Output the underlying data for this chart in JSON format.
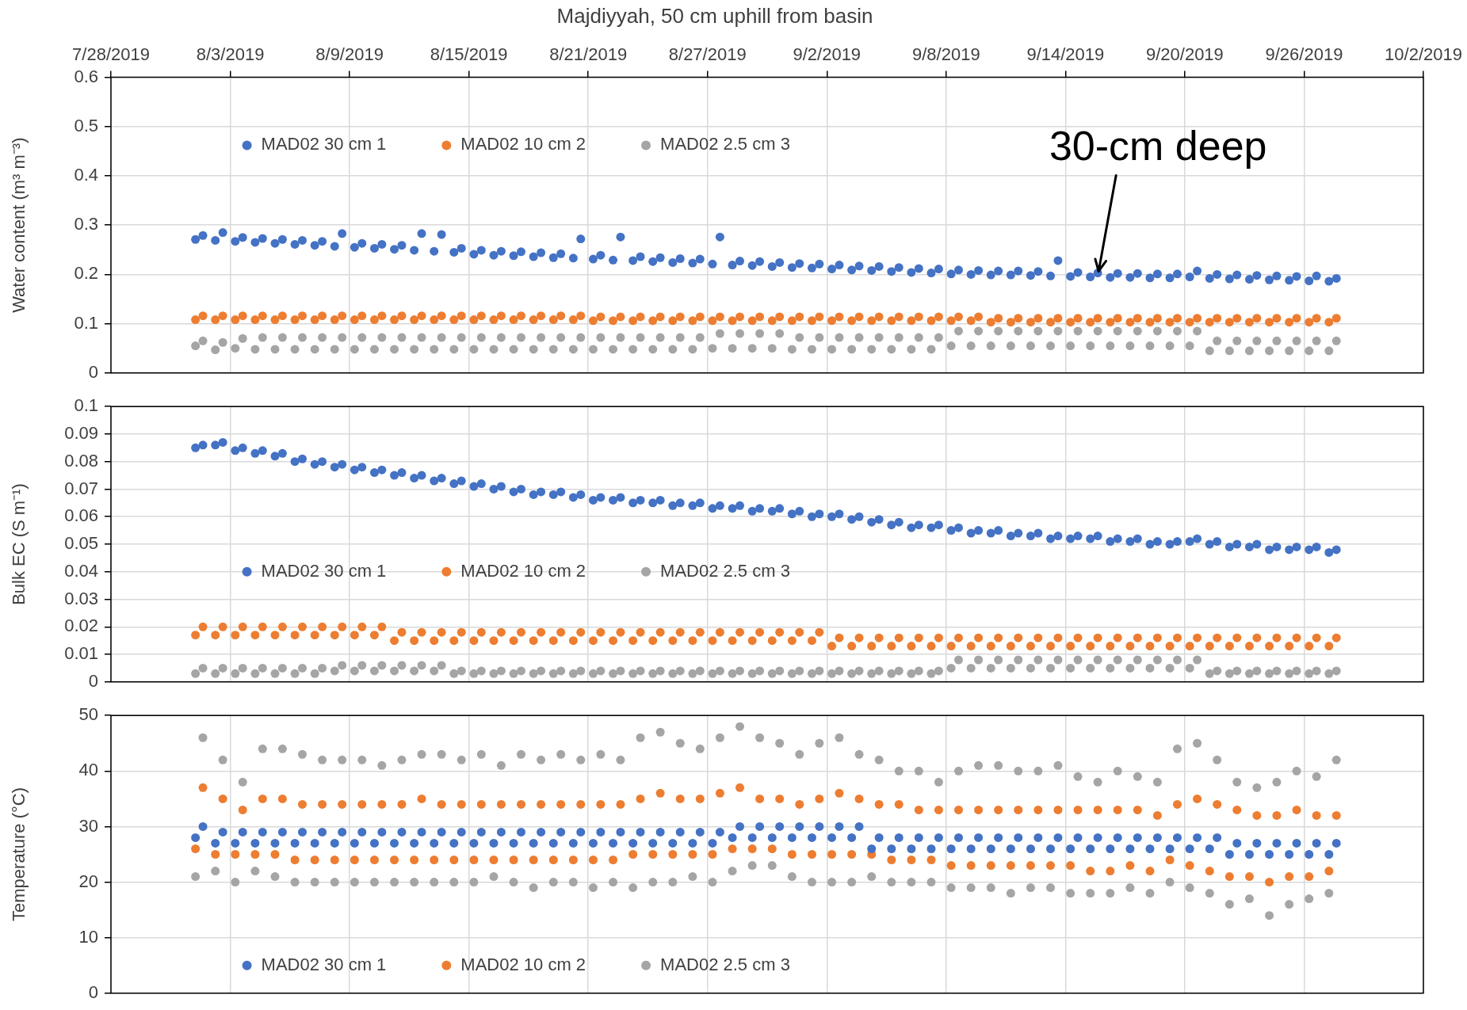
{
  "chart_data": [
    {
      "type": "scatter",
      "title": "Majdiyyah, 50 cm uphill from basin",
      "ylabel": "Water content (m³ m⁻³)",
      "grid": true,
      "legend": "top left",
      "marker": "circle",
      "xlim": [
        "2019-07-28",
        "2019-10-02"
      ],
      "xticks": [
        {
          "value": "2019-07-28",
          "label": "7/28/2019"
        },
        {
          "value": "2019-08-03",
          "label": "8/3/2019"
        },
        {
          "value": "2019-08-09",
          "label": "8/9/2019"
        },
        {
          "value": "2019-08-15",
          "label": "8/15/2019"
        },
        {
          "value": "2019-08-21",
          "label": "8/21/2019"
        },
        {
          "value": "2019-08-27",
          "label": "8/27/2019"
        },
        {
          "value": "2019-09-02",
          "label": "9/2/2019"
        },
        {
          "value": "2019-09-08",
          "label": "9/8/2019"
        },
        {
          "value": "2019-09-14",
          "label": "9/14/2019"
        },
        {
          "value": "2019-09-20",
          "label": "9/20/2019"
        },
        {
          "value": "2019-09-26",
          "label": "9/26/2019"
        },
        {
          "value": "2019-10-02",
          "label": "10/2/2019"
        }
      ],
      "ylim": [
        0,
        0.6
      ],
      "yticks": [
        0,
        0.1,
        0.2,
        0.3,
        0.4,
        0.5,
        0.6
      ],
      "annotations": [
        {
          "text": "30-cm deep",
          "x": "2019-09-15T16:00",
          "y": 0.2
        }
      ],
      "x": [
        "2019-08-01T06:00",
        "2019-08-01T15:00",
        "2019-08-02T06:00",
        "2019-08-02T15:00",
        "2019-08-03T06:00",
        "2019-08-03T15:00",
        "2019-08-04T06:00",
        "2019-08-04T15:00",
        "2019-08-05T06:00",
        "2019-08-05T15:00",
        "2019-08-06T06:00",
        "2019-08-06T15:00",
        "2019-08-07T06:00",
        "2019-08-07T15:00",
        "2019-08-08T06:00",
        "2019-08-08T15:00",
        "2019-08-09T06:00",
        "2019-08-09T15:00",
        "2019-08-10T06:00",
        "2019-08-10T15:00",
        "2019-08-11T06:00",
        "2019-08-11T15:00",
        "2019-08-12T06:00",
        "2019-08-12T15:00",
        "2019-08-13T06:00",
        "2019-08-13T15:00",
        "2019-08-14T06:00",
        "2019-08-14T15:00",
        "2019-08-15T06:00",
        "2019-08-15T15:00",
        "2019-08-16T06:00",
        "2019-08-16T15:00",
        "2019-08-17T06:00",
        "2019-08-17T15:00",
        "2019-08-18T06:00",
        "2019-08-18T15:00",
        "2019-08-19T06:00",
        "2019-08-19T15:00",
        "2019-08-20T06:00",
        "2019-08-20T15:00",
        "2019-08-21T06:00",
        "2019-08-21T15:00",
        "2019-08-22T06:00",
        "2019-08-22T15:00",
        "2019-08-23T06:00",
        "2019-08-23T15:00",
        "2019-08-24T06:00",
        "2019-08-24T15:00",
        "2019-08-25T06:00",
        "2019-08-25T15:00",
        "2019-08-26T06:00",
        "2019-08-26T15:00",
        "2019-08-27T06:00",
        "2019-08-27T15:00",
        "2019-08-28T06:00",
        "2019-08-28T15:00",
        "2019-08-29T06:00",
        "2019-08-29T15:00",
        "2019-08-30T06:00",
        "2019-08-30T15:00",
        "2019-08-31T06:00",
        "2019-08-31T15:00",
        "2019-09-01T06:00",
        "2019-09-01T15:00",
        "2019-09-02T06:00",
        "2019-09-02T15:00",
        "2019-09-03T06:00",
        "2019-09-03T15:00",
        "2019-09-04T06:00",
        "2019-09-04T15:00",
        "2019-09-05T06:00",
        "2019-09-05T15:00",
        "2019-09-06T06:00",
        "2019-09-06T15:00",
        "2019-09-07T06:00",
        "2019-09-07T15:00",
        "2019-09-08T06:00",
        "2019-09-08T15:00",
        "2019-09-09T06:00",
        "2019-09-09T15:00",
        "2019-09-10T06:00",
        "2019-09-10T15:00",
        "2019-09-11T06:00",
        "2019-09-11T15:00",
        "2019-09-12T06:00",
        "2019-09-12T15:00",
        "2019-09-13T06:00",
        "2019-09-13T15:00",
        "2019-09-14T06:00",
        "2019-09-14T15:00",
        "2019-09-15T06:00",
        "2019-09-15T15:00",
        "2019-09-16T06:00",
        "2019-09-16T15:00",
        "2019-09-17T06:00",
        "2019-09-17T15:00",
        "2019-09-18T06:00",
        "2019-09-18T15:00",
        "2019-09-19T06:00",
        "2019-09-19T15:00",
        "2019-09-20T06:00",
        "2019-09-20T15:00",
        "2019-09-21T06:00",
        "2019-09-21T15:00",
        "2019-09-22T06:00",
        "2019-09-22T15:00",
        "2019-09-23T06:00",
        "2019-09-23T15:00",
        "2019-09-24T06:00",
        "2019-09-24T15:00",
        "2019-09-25T06:00",
        "2019-09-25T15:00",
        "2019-09-26T06:00",
        "2019-09-26T15:00",
        "2019-09-27T06:00",
        "2019-09-27T15:00"
      ],
      "series": [
        {
          "name": "MAD02 30 cm 1",
          "color": "#4472c4",
          "values": [
            0.271,
            0.279,
            0.269,
            0.285,
            0.267,
            0.275,
            0.265,
            0.273,
            0.263,
            0.271,
            0.261,
            0.269,
            0.259,
            0.267,
            0.257,
            0.283,
            0.255,
            0.263,
            0.253,
            0.261,
            0.251,
            0.259,
            0.249,
            0.283,
            0.247,
            0.281,
            0.245,
            0.253,
            0.241,
            0.249,
            0.239,
            0.247,
            0.238,
            0.246,
            0.236,
            0.244,
            0.234,
            0.242,
            0.233,
            0.272,
            0.231,
            0.239,
            0.229,
            0.276,
            0.228,
            0.236,
            0.226,
            0.234,
            0.224,
            0.232,
            0.223,
            0.231,
            0.221,
            0.276,
            0.219,
            0.227,
            0.218,
            0.226,
            0.216,
            0.224,
            0.214,
            0.222,
            0.213,
            0.221,
            0.211,
            0.219,
            0.209,
            0.217,
            0.208,
            0.216,
            0.206,
            0.214,
            0.204,
            0.212,
            0.203,
            0.211,
            0.201,
            0.209,
            0.2,
            0.208,
            0.199,
            0.207,
            0.199,
            0.207,
            0.198,
            0.206,
            0.197,
            0.228,
            0.196,
            0.204,
            0.195,
            0.203,
            0.194,
            0.202,
            0.194,
            0.202,
            0.193,
            0.201,
            0.193,
            0.201,
            0.195,
            0.207,
            0.192,
            0.2,
            0.191,
            0.199,
            0.19,
            0.198,
            0.189,
            0.197,
            0.188,
            0.196,
            0.187,
            0.197,
            0.186,
            0.192
          ]
        },
        {
          "name": "MAD02 10 cm 2",
          "color": "#ed7d31",
          "values": [
            0.108,
            0.116,
            0.108,
            0.116,
            0.108,
            0.116,
            0.108,
            0.116,
            0.108,
            0.116,
            0.108,
            0.116,
            0.108,
            0.116,
            0.108,
            0.116,
            0.108,
            0.116,
            0.108,
            0.116,
            0.108,
            0.116,
            0.108,
            0.116,
            0.108,
            0.116,
            0.108,
            0.116,
            0.108,
            0.116,
            0.108,
            0.116,
            0.108,
            0.116,
            0.108,
            0.116,
            0.108,
            0.116,
            0.108,
            0.116,
            0.106,
            0.114,
            0.106,
            0.114,
            0.106,
            0.114,
            0.106,
            0.114,
            0.106,
            0.114,
            0.106,
            0.114,
            0.106,
            0.114,
            0.106,
            0.114,
            0.106,
            0.114,
            0.106,
            0.114,
            0.106,
            0.114,
            0.106,
            0.114,
            0.106,
            0.114,
            0.106,
            0.114,
            0.106,
            0.114,
            0.106,
            0.114,
            0.106,
            0.114,
            0.106,
            0.114,
            0.106,
            0.114,
            0.106,
            0.114,
            0.103,
            0.111,
            0.103,
            0.111,
            0.103,
            0.111,
            0.103,
            0.111,
            0.103,
            0.111,
            0.103,
            0.111,
            0.103,
            0.111,
            0.103,
            0.111,
            0.103,
            0.111,
            0.103,
            0.111,
            0.103,
            0.111,
            0.103,
            0.111,
            0.103,
            0.111,
            0.103,
            0.111,
            0.103,
            0.111,
            0.103,
            0.111,
            0.103,
            0.111,
            0.103,
            0.111
          ]
        },
        {
          "name": "MAD02 2.5 cm 3",
          "color": "#a5a5a5",
          "values": [
            0.055,
            0.065,
            0.047,
            0.062,
            0.05,
            0.07,
            0.048,
            0.072,
            0.048,
            0.072,
            0.048,
            0.072,
            0.048,
            0.072,
            0.048,
            0.072,
            0.048,
            0.072,
            0.048,
            0.072,
            0.048,
            0.072,
            0.048,
            0.072,
            0.048,
            0.072,
            0.048,
            0.072,
            0.048,
            0.072,
            0.048,
            0.072,
            0.048,
            0.072,
            0.048,
            0.072,
            0.048,
            0.072,
            0.048,
            0.072,
            0.048,
            0.072,
            0.048,
            0.072,
            0.048,
            0.072,
            0.048,
            0.072,
            0.048,
            0.072,
            0.048,
            0.072,
            0.05,
            0.08,
            0.05,
            0.08,
            0.05,
            0.08,
            0.05,
            0.08,
            0.048,
            0.072,
            0.048,
            0.072,
            0.048,
            0.072,
            0.048,
            0.072,
            0.048,
            0.072,
            0.048,
            0.072,
            0.048,
            0.072,
            0.048,
            0.072,
            0.055,
            0.085,
            0.055,
            0.085,
            0.055,
            0.085,
            0.055,
            0.085,
            0.055,
            0.085,
            0.055,
            0.085,
            0.055,
            0.085,
            0.055,
            0.085,
            0.055,
            0.085,
            0.055,
            0.085,
            0.055,
            0.085,
            0.055,
            0.085,
            0.055,
            0.085,
            0.045,
            0.065,
            0.045,
            0.065,
            0.045,
            0.065,
            0.045,
            0.065,
            0.045,
            0.065,
            0.045,
            0.065,
            0.045,
            0.065
          ]
        }
      ]
    },
    {
      "type": "scatter",
      "ylabel": "Bulk EC (S m⁻¹)",
      "grid": true,
      "legend": "left",
      "marker": "circle",
      "tick_labels": "y",
      "xlim": [
        "2019-07-28",
        "2019-10-02"
      ],
      "xticks": [
        {
          "value": "2019-07-28",
          "label": null
        },
        {
          "value": "2019-08-03",
          "label": null
        },
        {
          "value": "2019-08-09",
          "label": null
        },
        {
          "value": "2019-08-15",
          "label": null
        },
        {
          "value": "2019-08-21",
          "label": null
        },
        {
          "value": "2019-08-27",
          "label": null
        },
        {
          "value": "2019-09-02",
          "label": null
        },
        {
          "value": "2019-09-08",
          "label": null
        },
        {
          "value": "2019-09-14",
          "label": null
        },
        {
          "value": "2019-09-20",
          "label": null
        },
        {
          "value": "2019-09-26",
          "label": null
        },
        {
          "value": "2019-10-02",
          "label": null
        }
      ],
      "ylim": [
        0,
        0.1
      ],
      "yticks": [
        0,
        0.01,
        0.02,
        0.03,
        0.04,
        0.05,
        0.06,
        0.07,
        0.08,
        0.09,
        0.1
      ],
      "x": [
        "2019-08-01T06:00",
        "2019-08-01T15:00",
        "2019-08-02T06:00",
        "2019-08-02T15:00",
        "2019-08-03T06:00",
        "2019-08-03T15:00",
        "2019-08-04T06:00",
        "2019-08-04T15:00",
        "2019-08-05T06:00",
        "2019-08-05T15:00",
        "2019-08-06T06:00",
        "2019-08-06T15:00",
        "2019-08-07T06:00",
        "2019-08-07T15:00",
        "2019-08-08T06:00",
        "2019-08-08T15:00",
        "2019-08-09T06:00",
        "2019-08-09T15:00",
        "2019-08-10T06:00",
        "2019-08-10T15:00",
        "2019-08-11T06:00",
        "2019-08-11T15:00",
        "2019-08-12T06:00",
        "2019-08-12T15:00",
        "2019-08-13T06:00",
        "2019-08-13T15:00",
        "2019-08-14T06:00",
        "2019-08-14T15:00",
        "2019-08-15T06:00",
        "2019-08-15T15:00",
        "2019-08-16T06:00",
        "2019-08-16T15:00",
        "2019-08-17T06:00",
        "2019-08-17T15:00",
        "2019-08-18T06:00",
        "2019-08-18T15:00",
        "2019-08-19T06:00",
        "2019-08-19T15:00",
        "2019-08-20T06:00",
        "2019-08-20T15:00",
        "2019-08-21T06:00",
        "2019-08-21T15:00",
        "2019-08-22T06:00",
        "2019-08-22T15:00",
        "2019-08-23T06:00",
        "2019-08-23T15:00",
        "2019-08-24T06:00",
        "2019-08-24T15:00",
        "2019-08-25T06:00",
        "2019-08-25T15:00",
        "2019-08-26T06:00",
        "2019-08-26T15:00",
        "2019-08-27T06:00",
        "2019-08-27T15:00",
        "2019-08-28T06:00",
        "2019-08-28T15:00",
        "2019-08-29T06:00",
        "2019-08-29T15:00",
        "2019-08-30T06:00",
        "2019-08-30T15:00",
        "2019-08-31T06:00",
        "2019-08-31T15:00",
        "2019-09-01T06:00",
        "2019-09-01T15:00",
        "2019-09-02T06:00",
        "2019-09-02T15:00",
        "2019-09-03T06:00",
        "2019-09-03T15:00",
        "2019-09-04T06:00",
        "2019-09-04T15:00",
        "2019-09-05T06:00",
        "2019-09-05T15:00",
        "2019-09-06T06:00",
        "2019-09-06T15:00",
        "2019-09-07T06:00",
        "2019-09-07T15:00",
        "2019-09-08T06:00",
        "2019-09-08T15:00",
        "2019-09-09T06:00",
        "2019-09-09T15:00",
        "2019-09-10T06:00",
        "2019-09-10T15:00",
        "2019-09-11T06:00",
        "2019-09-11T15:00",
        "2019-09-12T06:00",
        "2019-09-12T15:00",
        "2019-09-13T06:00",
        "2019-09-13T15:00",
        "2019-09-14T06:00",
        "2019-09-14T15:00",
        "2019-09-15T06:00",
        "2019-09-15T15:00",
        "2019-09-16T06:00",
        "2019-09-16T15:00",
        "2019-09-17T06:00",
        "2019-09-17T15:00",
        "2019-09-18T06:00",
        "2019-09-18T15:00",
        "2019-09-19T06:00",
        "2019-09-19T15:00",
        "2019-09-20T06:00",
        "2019-09-20T15:00",
        "2019-09-21T06:00",
        "2019-09-21T15:00",
        "2019-09-22T06:00",
        "2019-09-22T15:00",
        "2019-09-23T06:00",
        "2019-09-23T15:00",
        "2019-09-24T06:00",
        "2019-09-24T15:00",
        "2019-09-25T06:00",
        "2019-09-25T15:00",
        "2019-09-26T06:00",
        "2019-09-26T15:00",
        "2019-09-27T06:00",
        "2019-09-27T15:00"
      ],
      "series": [
        {
          "name": "MAD02 30 cm 1",
          "color": "#4472c4",
          "values": [
            0.085,
            0.086,
            0.086,
            0.087,
            0.084,
            0.085,
            0.083,
            0.084,
            0.082,
            0.083,
            0.08,
            0.081,
            0.079,
            0.08,
            0.078,
            0.079,
            0.077,
            0.078,
            0.076,
            0.077,
            0.075,
            0.076,
            0.074,
            0.075,
            0.073,
            0.074,
            0.072,
            0.073,
            0.071,
            0.072,
            0.07,
            0.071,
            0.069,
            0.07,
            0.068,
            0.069,
            0.068,
            0.069,
            0.067,
            0.068,
            0.066,
            0.067,
            0.066,
            0.067,
            0.065,
            0.066,
            0.065,
            0.066,
            0.064,
            0.065,
            0.064,
            0.065,
            0.063,
            0.064,
            0.063,
            0.064,
            0.062,
            0.063,
            0.062,
            0.063,
            0.061,
            0.062,
            0.06,
            0.061,
            0.06,
            0.061,
            0.059,
            0.06,
            0.058,
            0.059,
            0.057,
            0.058,
            0.056,
            0.057,
            0.056,
            0.057,
            0.055,
            0.056,
            0.054,
            0.055,
            0.054,
            0.055,
            0.053,
            0.054,
            0.053,
            0.054,
            0.052,
            0.053,
            0.052,
            0.053,
            0.052,
            0.053,
            0.051,
            0.052,
            0.051,
            0.052,
            0.05,
            0.051,
            0.05,
            0.051,
            0.051,
            0.052,
            0.05,
            0.051,
            0.049,
            0.05,
            0.049,
            0.05,
            0.048,
            0.049,
            0.048,
            0.049,
            0.048,
            0.049,
            0.047,
            0.048
          ]
        },
        {
          "name": "MAD02 10 cm 2",
          "color": "#ed7d31",
          "values": [
            0.017,
            0.02,
            0.017,
            0.02,
            0.017,
            0.02,
            0.017,
            0.02,
            0.017,
            0.02,
            0.017,
            0.02,
            0.017,
            0.02,
            0.017,
            0.02,
            0.017,
            0.02,
            0.017,
            0.02,
            0.015,
            0.018,
            0.015,
            0.018,
            0.015,
            0.018,
            0.015,
            0.018,
            0.015,
            0.018,
            0.015,
            0.018,
            0.015,
            0.018,
            0.015,
            0.018,
            0.015,
            0.018,
            0.015,
            0.018,
            0.015,
            0.018,
            0.015,
            0.018,
            0.015,
            0.018,
            0.015,
            0.018,
            0.015,
            0.018,
            0.015,
            0.018,
            0.015,
            0.018,
            0.015,
            0.018,
            0.015,
            0.018,
            0.015,
            0.018,
            0.015,
            0.018,
            0.015,
            0.018,
            0.013,
            0.016,
            0.013,
            0.016,
            0.013,
            0.016,
            0.013,
            0.016,
            0.013,
            0.016,
            0.013,
            0.016,
            0.013,
            0.016,
            0.013,
            0.016,
            0.013,
            0.016,
            0.013,
            0.016,
            0.013,
            0.016,
            0.013,
            0.016,
            0.013,
            0.016,
            0.013,
            0.016,
            0.013,
            0.016,
            0.013,
            0.016,
            0.013,
            0.016,
            0.013,
            0.016,
            0.013,
            0.016,
            0.013,
            0.016,
            0.013,
            0.016,
            0.013,
            0.016,
            0.013,
            0.016,
            0.013,
            0.016,
            0.013,
            0.016,
            0.013,
            0.016
          ]
        },
        {
          "name": "MAD02 2.5 cm 3",
          "color": "#a5a5a5",
          "values": [
            0.003,
            0.005,
            0.003,
            0.005,
            0.003,
            0.005,
            0.003,
            0.005,
            0.003,
            0.005,
            0.003,
            0.005,
            0.003,
            0.005,
            0.004,
            0.006,
            0.004,
            0.006,
            0.004,
            0.006,
            0.004,
            0.006,
            0.004,
            0.006,
            0.004,
            0.006,
            0.003,
            0.004,
            0.003,
            0.004,
            0.003,
            0.004,
            0.003,
            0.004,
            0.003,
            0.004,
            0.003,
            0.004,
            0.003,
            0.004,
            0.003,
            0.004,
            0.003,
            0.004,
            0.003,
            0.004,
            0.003,
            0.004,
            0.003,
            0.004,
            0.003,
            0.004,
            0.003,
            0.004,
            0.003,
            0.004,
            0.003,
            0.004,
            0.003,
            0.004,
            0.003,
            0.004,
            0.003,
            0.004,
            0.003,
            0.004,
            0.003,
            0.004,
            0.003,
            0.004,
            0.003,
            0.004,
            0.003,
            0.004,
            0.003,
            0.004,
            0.005,
            0.008,
            0.005,
            0.008,
            0.005,
            0.008,
            0.005,
            0.008,
            0.005,
            0.008,
            0.005,
            0.008,
            0.005,
            0.008,
            0.005,
            0.008,
            0.005,
            0.008,
            0.005,
            0.008,
            0.005,
            0.008,
            0.005,
            0.008,
            0.005,
            0.008,
            0.003,
            0.004,
            0.003,
            0.004,
            0.003,
            0.004,
            0.003,
            0.004,
            0.003,
            0.004,
            0.003,
            0.004,
            0.003,
            0.004
          ]
        }
      ]
    },
    {
      "type": "scatter",
      "ylabel": "Temperature (°C)",
      "grid": true,
      "legend": "bottom left",
      "marker": "circle",
      "tick_labels": "y",
      "xlim": [
        "2019-07-28",
        "2019-10-02"
      ],
      "xticks": [
        {
          "value": "2019-07-28",
          "label": null
        },
        {
          "value": "2019-08-03",
          "label": null
        },
        {
          "value": "2019-08-09",
          "label": null
        },
        {
          "value": "2019-08-15",
          "label": null
        },
        {
          "value": "2019-08-21",
          "label": null
        },
        {
          "value": "2019-08-27",
          "label": null
        },
        {
          "value": "2019-09-02",
          "label": null
        },
        {
          "value": "2019-09-08",
          "label": null
        },
        {
          "value": "2019-09-14",
          "label": null
        },
        {
          "value": "2019-09-20",
          "label": null
        },
        {
          "value": "2019-09-26",
          "label": null
        },
        {
          "value": "2019-10-02",
          "label": null
        }
      ],
      "ylim": [
        0,
        50
      ],
      "yticks": [
        0,
        10,
        20,
        30,
        40,
        50
      ],
      "x": [
        "2019-08-01T06:00",
        "2019-08-01T15:00",
        "2019-08-02T06:00",
        "2019-08-02T15:00",
        "2019-08-03T06:00",
        "2019-08-03T15:00",
        "2019-08-04T06:00",
        "2019-08-04T15:00",
        "2019-08-05T06:00",
        "2019-08-05T15:00",
        "2019-08-06T06:00",
        "2019-08-06T15:00",
        "2019-08-07T06:00",
        "2019-08-07T15:00",
        "2019-08-08T06:00",
        "2019-08-08T15:00",
        "2019-08-09T06:00",
        "2019-08-09T15:00",
        "2019-08-10T06:00",
        "2019-08-10T15:00",
        "2019-08-11T06:00",
        "2019-08-11T15:00",
        "2019-08-12T06:00",
        "2019-08-12T15:00",
        "2019-08-13T06:00",
        "2019-08-13T15:00",
        "2019-08-14T06:00",
        "2019-08-14T15:00",
        "2019-08-15T06:00",
        "2019-08-15T15:00",
        "2019-08-16T06:00",
        "2019-08-16T15:00",
        "2019-08-17T06:00",
        "2019-08-17T15:00",
        "2019-08-18T06:00",
        "2019-08-18T15:00",
        "2019-08-19T06:00",
        "2019-08-19T15:00",
        "2019-08-20T06:00",
        "2019-08-20T15:00",
        "2019-08-21T06:00",
        "2019-08-21T15:00",
        "2019-08-22T06:00",
        "2019-08-22T15:00",
        "2019-08-23T06:00",
        "2019-08-23T15:00",
        "2019-08-24T06:00",
        "2019-08-24T15:00",
        "2019-08-25T06:00",
        "2019-08-25T15:00",
        "2019-08-26T06:00",
        "2019-08-26T15:00",
        "2019-08-27T06:00",
        "2019-08-27T15:00",
        "2019-08-28T06:00",
        "2019-08-28T15:00",
        "2019-08-29T06:00",
        "2019-08-29T15:00",
        "2019-08-30T06:00",
        "2019-08-30T15:00",
        "2019-08-31T06:00",
        "2019-08-31T15:00",
        "2019-09-01T06:00",
        "2019-09-01T15:00",
        "2019-09-02T06:00",
        "2019-09-02T15:00",
        "2019-09-03T06:00",
        "2019-09-03T15:00",
        "2019-09-04T06:00",
        "2019-09-04T15:00",
        "2019-09-05T06:00",
        "2019-09-05T15:00",
        "2019-09-06T06:00",
        "2019-09-06T15:00",
        "2019-09-07T06:00",
        "2019-09-07T15:00",
        "2019-09-08T06:00",
        "2019-09-08T15:00",
        "2019-09-09T06:00",
        "2019-09-09T15:00",
        "2019-09-10T06:00",
        "2019-09-10T15:00",
        "2019-09-11T06:00",
        "2019-09-11T15:00",
        "2019-09-12T06:00",
        "2019-09-12T15:00",
        "2019-09-13T06:00",
        "2019-09-13T15:00",
        "2019-09-14T06:00",
        "2019-09-14T15:00",
        "2019-09-15T06:00",
        "2019-09-15T15:00",
        "2019-09-16T06:00",
        "2019-09-16T15:00",
        "2019-09-17T06:00",
        "2019-09-17T15:00",
        "2019-09-18T06:00",
        "2019-09-18T15:00",
        "2019-09-19T06:00",
        "2019-09-19T15:00",
        "2019-09-20T06:00",
        "2019-09-20T15:00",
        "2019-09-21T06:00",
        "2019-09-21T15:00",
        "2019-09-22T06:00",
        "2019-09-22T15:00",
        "2019-09-23T06:00",
        "2019-09-23T15:00",
        "2019-09-24T06:00",
        "2019-09-24T15:00",
        "2019-09-25T06:00",
        "2019-09-25T15:00",
        "2019-09-26T06:00",
        "2019-09-26T15:00",
        "2019-09-27T06:00",
        "2019-09-27T15:00"
      ],
      "series": [
        {
          "name": "MAD02 30 cm 1",
          "color": "#4472c4",
          "values": [
            28,
            30,
            27,
            29,
            27,
            29,
            27,
            29,
            27,
            29,
            27,
            29,
            27,
            29,
            27,
            29,
            27,
            29,
            27,
            29,
            27,
            29,
            27,
            29,
            27,
            29,
            27,
            29,
            27,
            29,
            27,
            29,
            27,
            29,
            27,
            29,
            27,
            29,
            27,
            29,
            27,
            29,
            27,
            29,
            27,
            29,
            27,
            29,
            27,
            29,
            27,
            29,
            27,
            29,
            28,
            30,
            28,
            30,
            28,
            30,
            28,
            30,
            28,
            30,
            28,
            30,
            28,
            30,
            26,
            28,
            26,
            28,
            26,
            28,
            26,
            28,
            26,
            28,
            26,
            28,
            26,
            28,
            26,
            28,
            26,
            28,
            26,
            28,
            26,
            28,
            26,
            28,
            26,
            28,
            26,
            28,
            26,
            28,
            26,
            28,
            26,
            28,
            26,
            28,
            25,
            27,
            25,
            27,
            25,
            27,
            25,
            27,
            25,
            27,
            25,
            27
          ]
        },
        {
          "name": "MAD02 10 cm 2",
          "color": "#ed7d31",
          "values": [
            26,
            37,
            25,
            35,
            25,
            33,
            25,
            35,
            25,
            35,
            24,
            34,
            24,
            34,
            24,
            34,
            24,
            34,
            24,
            34,
            24,
            34,
            24,
            35,
            24,
            34,
            24,
            34,
            24,
            34,
            24,
            34,
            24,
            34,
            24,
            34,
            24,
            34,
            24,
            34,
            24,
            34,
            24,
            34,
            25,
            35,
            25,
            36,
            25,
            35,
            25,
            35,
            25,
            36,
            26,
            37,
            26,
            35,
            26,
            35,
            25,
            34,
            25,
            35,
            25,
            36,
            25,
            35,
            25,
            34,
            24,
            34,
            24,
            33,
            24,
            33,
            23,
            33,
            23,
            33,
            23,
            33,
            23,
            33,
            23,
            33,
            23,
            33,
            23,
            33,
            22,
            33,
            22,
            33,
            23,
            33,
            22,
            32,
            24,
            34,
            23,
            35,
            22,
            34,
            21,
            33,
            21,
            32,
            20,
            32,
            21,
            33,
            21,
            32,
            22,
            32
          ]
        },
        {
          "name": "MAD02 2.5 cm 3",
          "color": "#a5a5a5",
          "values": [
            21,
            46,
            22,
            42,
            20,
            38,
            22,
            44,
            21,
            44,
            20,
            43,
            20,
            42,
            20,
            42,
            20,
            42,
            20,
            41,
            20,
            42,
            20,
            43,
            20,
            43,
            20,
            42,
            20,
            43,
            21,
            41,
            20,
            43,
            19,
            42,
            20,
            43,
            20,
            42,
            19,
            43,
            20,
            42,
            19,
            46,
            20,
            47,
            20,
            45,
            21,
            44,
            20,
            46,
            22,
            48,
            23,
            46,
            23,
            45,
            21,
            43,
            20,
            45,
            20,
            46,
            20,
            43,
            21,
            42,
            20,
            40,
            20,
            40,
            20,
            38,
            19,
            40,
            19,
            41,
            19,
            41,
            18,
            40,
            19,
            40,
            19,
            41,
            18,
            39,
            18,
            38,
            18,
            40,
            19,
            39,
            18,
            38,
            20,
            44,
            19,
            45,
            18,
            42,
            16,
            38,
            17,
            37,
            14,
            38,
            16,
            40,
            17,
            39,
            18,
            42
          ]
        }
      ]
    }
  ]
}
